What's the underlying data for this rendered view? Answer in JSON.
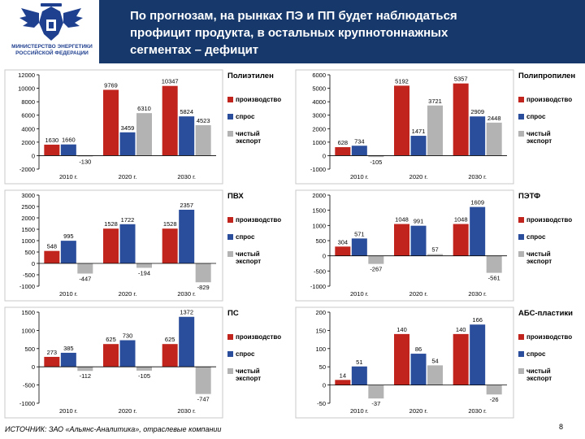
{
  "header": {
    "org_lines": [
      "МИНИСТЕРСТВО ЭНЕРГЕТИКИ",
      "РОССИЙСКОЙ ФЕДЕРАЦИИ"
    ],
    "title_lines": [
      "По прогнозам, на рынках ПЭ и ПП будет наблюдаться",
      "профицит продукта, в остальных крупнотоннажных",
      "сегментах – дефицит"
    ]
  },
  "footer": {
    "source": "ИСТОЧНИК: ЗАО «Альянс-Аналитика», отраслевые компании",
    "page": "8"
  },
  "colors": {
    "header_bg": "#16386b",
    "production": "#c0241c",
    "demand": "#2a4d9c",
    "net_export": "#b3b3b3"
  },
  "legend": {
    "production": "производство",
    "demand": "спрос",
    "net_export_lines": [
      "чистый",
      "экспорт"
    ]
  },
  "chart_data": [
    {
      "type": "bar",
      "title": "Полиэтилен",
      "categories": [
        "2010 г.",
        "2020 г.",
        "2030 г."
      ],
      "series": [
        {
          "name": "производство",
          "values": [
            1630,
            9769,
            10347
          ]
        },
        {
          "name": "спрос",
          "values": [
            1660,
            3459,
            5824
          ]
        },
        {
          "name": "чистый экспорт",
          "values": [
            -130,
            6310,
            4523
          ]
        }
      ],
      "ylim": [
        -2000,
        12000
      ],
      "yticks": [
        -2000,
        0,
        2000,
        4000,
        6000,
        8000,
        10000,
        12000
      ],
      "ytick_labels": [
        "-2000",
        "0",
        "2000",
        "4000",
        "6000",
        "8000",
        "10000",
        "12000"
      ]
    },
    {
      "type": "bar",
      "title": "Полипропилен",
      "categories": [
        "2010 г.",
        "2020 г.",
        "2030 г."
      ],
      "series": [
        {
          "name": "производство",
          "values": [
            628,
            5192,
            5357
          ]
        },
        {
          "name": "спрос",
          "values": [
            734,
            1471,
            2909
          ]
        },
        {
          "name": "чистый экспорт",
          "values": [
            -105,
            3721,
            2448
          ]
        }
      ],
      "ylim": [
        -1000,
        6000
      ],
      "yticks": [
        -1000,
        0,
        1000,
        2000,
        3000,
        4000,
        5000,
        6000
      ],
      "ytick_labels": [
        "-1000",
        "0",
        "1000",
        "2000",
        "3000",
        "4000",
        "5000",
        "6000"
      ]
    },
    {
      "type": "bar",
      "title": "ПВХ",
      "categories": [
        "2010 г.",
        "2020 г.",
        "2030 г."
      ],
      "series": [
        {
          "name": "производство",
          "values": [
            548,
            1528,
            1528
          ]
        },
        {
          "name": "спрос",
          "values": [
            995,
            1722,
            2357
          ]
        },
        {
          "name": "чистый экспорт",
          "values": [
            -447,
            -194,
            -829
          ]
        }
      ],
      "ylim": [
        -1000,
        3000
      ],
      "yticks": [
        -1000,
        -500,
        0,
        500,
        1000,
        1500,
        2000,
        2500,
        3000
      ],
      "ytick_labels": [
        "-1000",
        "-500",
        "0",
        "500",
        "1000",
        "1500",
        "2000",
        "2500",
        "3000"
      ]
    },
    {
      "type": "bar",
      "title": "ПЭТФ",
      "categories": [
        "2010 г.",
        "2020 г.",
        "2030 г."
      ],
      "series": [
        {
          "name": "производство",
          "values": [
            304,
            1048,
            1048
          ]
        },
        {
          "name": "спрос",
          "values": [
            571,
            991,
            1609
          ]
        },
        {
          "name": "чистый экспорт",
          "values": [
            -267,
            57,
            -561
          ]
        }
      ],
      "ylim": [
        -1000,
        2000
      ],
      "yticks": [
        -1000,
        -500,
        0,
        500,
        1000,
        1500,
        2000
      ],
      "ytick_labels": [
        "-1000",
        "-500",
        "0",
        "500",
        "1000",
        "1500",
        "2000"
      ]
    },
    {
      "type": "bar",
      "title": "ПС",
      "categories": [
        "2010 г.",
        "2020 г.",
        "2030 г."
      ],
      "series": [
        {
          "name": "производство",
          "values": [
            273,
            625,
            625
          ]
        },
        {
          "name": "спрос",
          "values": [
            385,
            730,
            1372
          ]
        },
        {
          "name": "чистый экспорт",
          "values": [
            -112,
            -105,
            -747
          ]
        }
      ],
      "ylim": [
        -1000,
        1500
      ],
      "yticks": [
        -1000,
        -500,
        0,
        500,
        1000,
        1500
      ],
      "ytick_labels": [
        "-1000",
        "-500",
        "0",
        "500",
        "1000",
        "1500"
      ]
    },
    {
      "type": "bar",
      "title": "АБС-пластики",
      "categories": [
        "2010 г.",
        "2020 г.",
        "2030 г."
      ],
      "series": [
        {
          "name": "производство",
          "values": [
            14,
            140,
            140
          ]
        },
        {
          "name": "спрос",
          "values": [
            51,
            86,
            166
          ]
        },
        {
          "name": "чистый экспорт",
          "values": [
            -37,
            54,
            -26
          ]
        }
      ],
      "ylim": [
        -50,
        200
      ],
      "yticks": [
        -50,
        0,
        50,
        100,
        150,
        200
      ],
      "ytick_labels": [
        "-50",
        "0",
        "50",
        "100",
        "150",
        "200"
      ]
    }
  ]
}
